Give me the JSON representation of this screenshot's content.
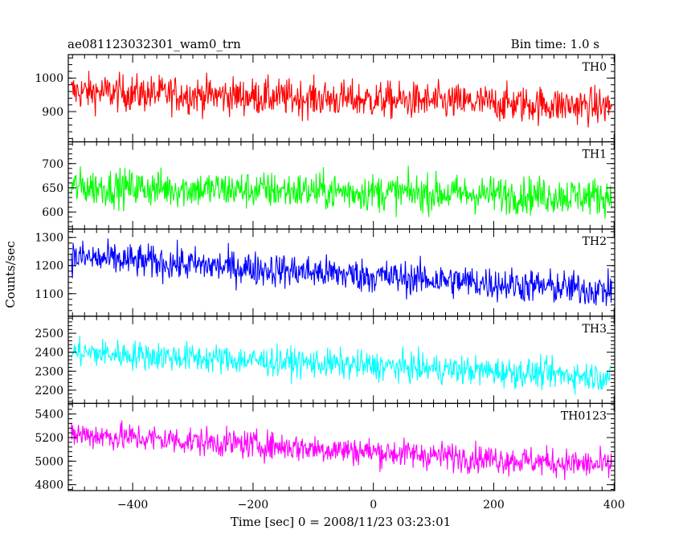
{
  "header": {
    "title": "ae081123032301_wam0_trn",
    "bin_time": "Bin time: 1.0 s"
  },
  "chart_data": {
    "type": "line",
    "ylabel": "Counts/sec",
    "xlabel": "Time [sec] 0 = 2008/11/23 03:23:01",
    "x_range": [
      -507,
      401
    ],
    "x_ticks": [
      -400,
      -200,
      0,
      200,
      400
    ],
    "x_tick_labels": [
      "−400",
      "−200",
      "0",
      "200",
      "400"
    ],
    "bin_seconds": 1.0,
    "panels": [
      {
        "name": "TH0",
        "color": "#ff0000",
        "ylim": [
          810,
          1070
        ],
        "y_ticks": [
          900,
          1000
        ],
        "y_tick_labels": [
          "900",
          "1000"
        ],
        "trend_start": 960,
        "trend_end": 915,
        "noise_amplitude": 50
      },
      {
        "name": "TH1",
        "color": "#00ff00",
        "ylim": [
          565,
          745
        ],
        "y_ticks": [
          600,
          650,
          700
        ],
        "y_tick_labels": [
          "600",
          "650",
          "700"
        ],
        "trend_start": 652,
        "trend_end": 632,
        "noise_amplitude": 35
      },
      {
        "name": "TH2",
        "color": "#0000ff",
        "ylim": [
          1020,
          1330
        ],
        "y_ticks": [
          1100,
          1200,
          1300
        ],
        "y_tick_labels": [
          "1100",
          "1200",
          "1300"
        ],
        "trend_start": 1230,
        "trend_end": 1110,
        "noise_amplitude": 55
      },
      {
        "name": "TH3",
        "color": "#00ffff",
        "ylim": [
          2130,
          2590
        ],
        "y_ticks": [
          2200,
          2300,
          2400,
          2500
        ],
        "y_tick_labels": [
          "2200",
          "2300",
          "2400",
          "2500"
        ],
        "trend_start": 2400,
        "trend_end": 2270,
        "noise_amplitude": 70
      },
      {
        "name": "TH0123",
        "color": "#ff00ff",
        "ylim": [
          4750,
          5490
        ],
        "y_ticks": [
          4800,
          5000,
          5200,
          5400
        ],
        "y_tick_labels": [
          "4800",
          "5000",
          "5200",
          "5400"
        ],
        "trend_start": 5230,
        "trend_end": 4960,
        "noise_amplitude": 110
      }
    ]
  }
}
